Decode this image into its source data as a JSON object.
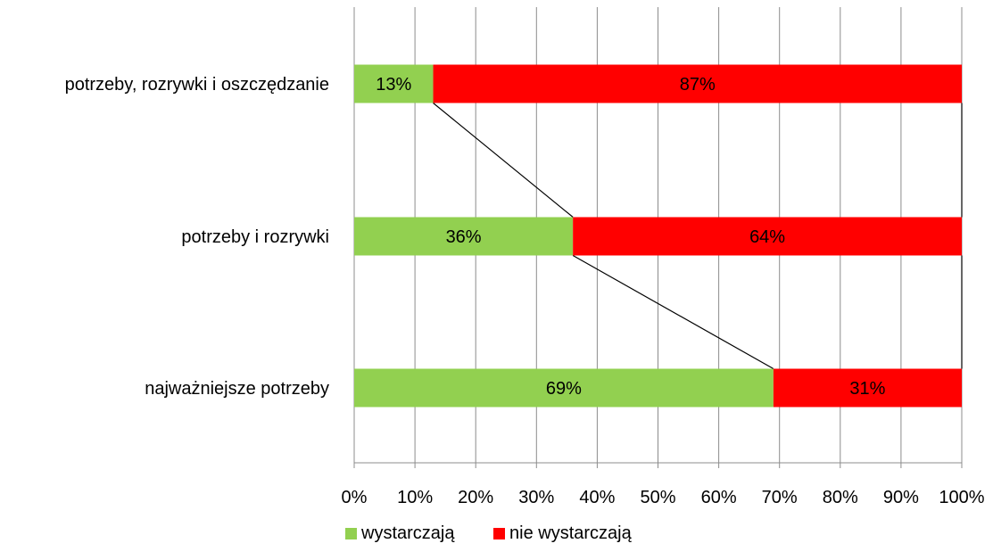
{
  "chart_data": {
    "type": "bar",
    "orientation": "horizontal",
    "stacked": true,
    "percent_stacked": true,
    "title": "",
    "xlabel": "",
    "ylabel": "",
    "categories": [
      "potrzeby, rozrywki i oszczędzanie",
      "potrzeby i rozrywki",
      "najważniejsze potrzeby"
    ],
    "series": [
      {
        "name": "wystarczają",
        "color": "#92D050",
        "values": [
          13,
          36,
          69
        ],
        "labels": [
          "13%",
          "36%",
          "69%"
        ]
      },
      {
        "name": "nie wystarczają",
        "color": "#FF0000",
        "values": [
          87,
          64,
          31
        ],
        "labels": [
          "87%",
          "64%",
          "31%"
        ]
      }
    ],
    "xlim": [
      0,
      100
    ],
    "x_ticks": [
      "0%",
      "10%",
      "20%",
      "30%",
      "40%",
      "50%",
      "60%",
      "70%",
      "80%",
      "90%",
      "100%"
    ],
    "grid": true,
    "series_lines": true,
    "legend": "bottom"
  }
}
